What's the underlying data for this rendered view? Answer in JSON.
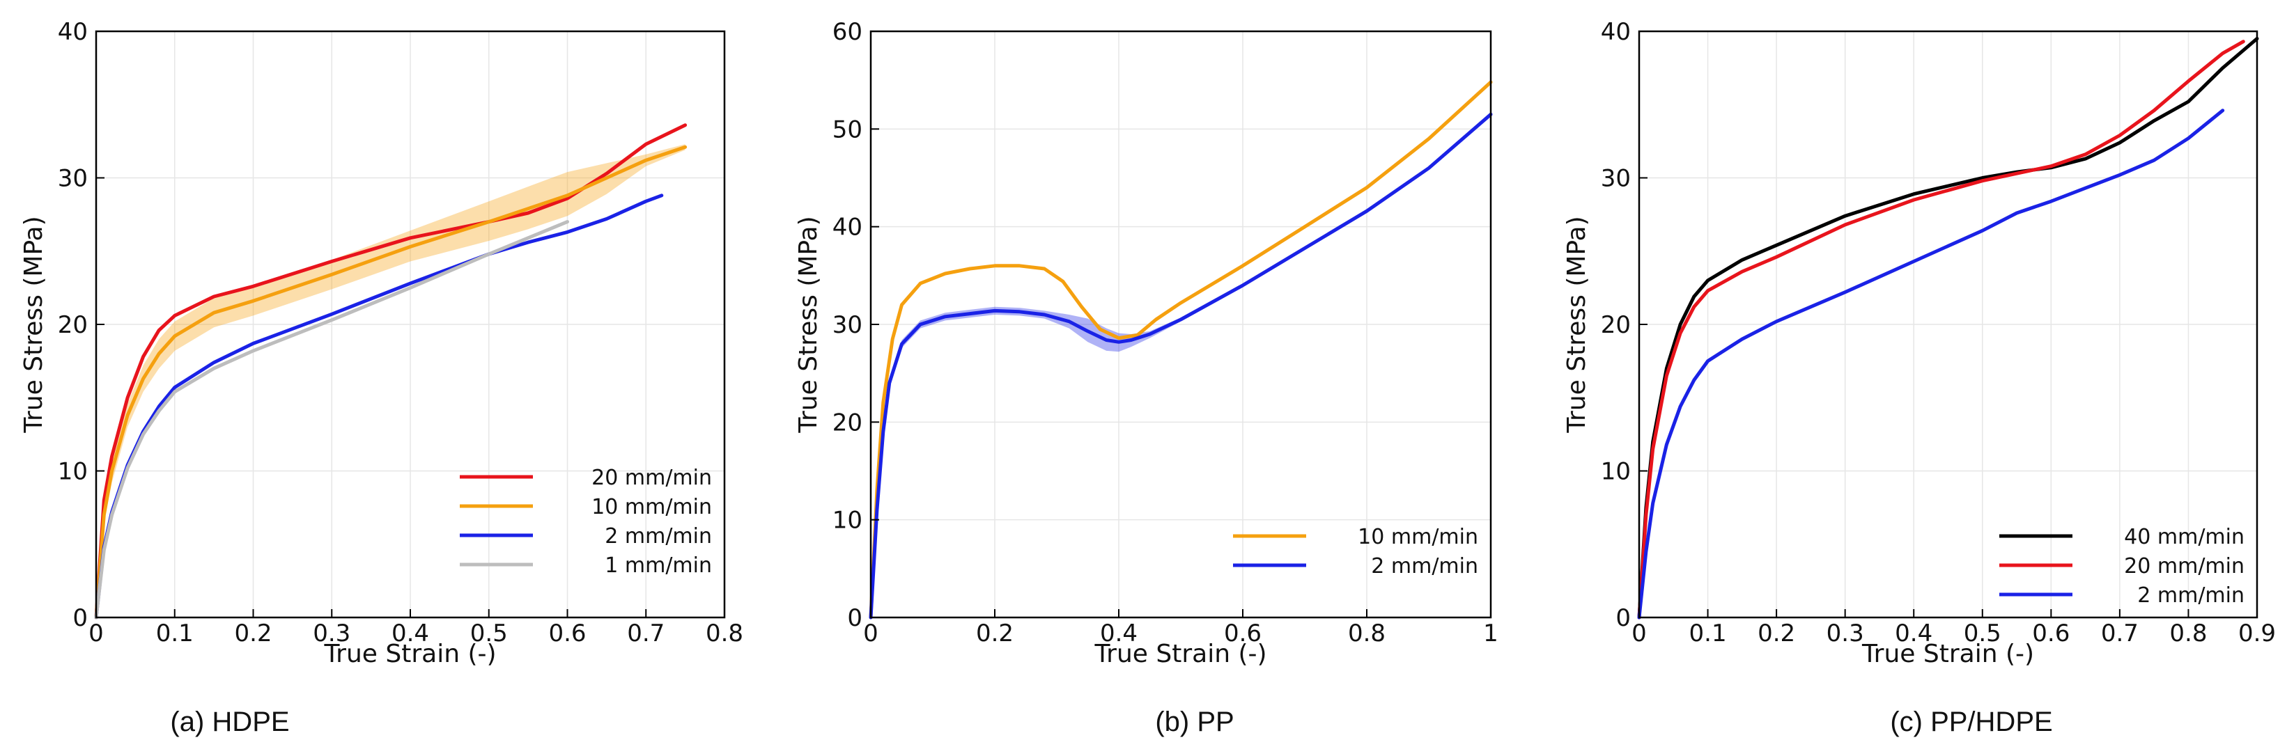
{
  "chart_data": [
    {
      "type": "line",
      "caption": "(a) HDPE",
      "xlabel": "True Strain (-)",
      "ylabel": "True Stress (MPa)",
      "xlim": [
        0,
        0.8
      ],
      "ylim": [
        0,
        40
      ],
      "xticks": [
        0,
        0.1,
        0.2,
        0.3,
        0.4,
        0.5,
        0.6,
        0.7,
        0.8
      ],
      "xtick_labels": [
        "0",
        "0.1",
        "0.2",
        "0.3",
        "0.4",
        "0.5",
        "0.6",
        "0.7",
        "0.8"
      ],
      "yticks": [
        0,
        10,
        20,
        30,
        40
      ],
      "ytick_labels": [
        "0",
        "10",
        "20",
        "30",
        "40"
      ],
      "grid": true,
      "legend_position": "bottom-right",
      "series": [
        {
          "name": "20 mm/min",
          "color": "#e8141c",
          "x": [
            0,
            0.01,
            0.02,
            0.04,
            0.06,
            0.08,
            0.1,
            0.15,
            0.2,
            0.3,
            0.4,
            0.5,
            0.55,
            0.6,
            0.65,
            0.7,
            0.75
          ],
          "y": [
            0,
            8,
            11,
            15,
            17.8,
            19.6,
            20.6,
            21.9,
            22.6,
            24.3,
            25.9,
            27.0,
            27.6,
            28.6,
            30.3,
            32.3,
            33.6
          ]
        },
        {
          "name": "10 mm/min",
          "color": "#f5a00f",
          "x": [
            0,
            0.01,
            0.02,
            0.04,
            0.06,
            0.08,
            0.1,
            0.15,
            0.2,
            0.3,
            0.4,
            0.5,
            0.55,
            0.6,
            0.65,
            0.7,
            0.75
          ],
          "y": [
            0,
            7,
            10,
            13.8,
            16.3,
            18.0,
            19.2,
            20.8,
            21.6,
            23.4,
            25.3,
            27.0,
            27.9,
            28.8,
            30.0,
            31.2,
            32.1
          ],
          "band_upper": [
            0,
            7.6,
            10.8,
            14.6,
            17.2,
            19.0,
            20.2,
            21.8,
            22.6,
            24.4,
            26.4,
            28.4,
            29.4,
            30.4,
            31.0,
            31.6,
            32.3
          ],
          "band_lower": [
            0,
            6.4,
            9.2,
            13.0,
            15.4,
            17.0,
            18.2,
            19.8,
            20.6,
            22.4,
            24.3,
            25.7,
            26.5,
            27.4,
            28.9,
            30.8,
            31.9
          ]
        },
        {
          "name": "2 mm/min",
          "color": "#1a22e6",
          "x": [
            0,
            0.01,
            0.02,
            0.04,
            0.06,
            0.08,
            0.1,
            0.15,
            0.2,
            0.3,
            0.4,
            0.5,
            0.55,
            0.6,
            0.65,
            0.7,
            0.72
          ],
          "y": [
            0,
            4.8,
            7.2,
            10.4,
            12.7,
            14.4,
            15.7,
            17.4,
            18.7,
            20.7,
            22.8,
            24.8,
            25.6,
            26.3,
            27.2,
            28.4,
            28.8
          ]
        },
        {
          "name": "1 mm/min",
          "color": "#bdbdbd",
          "x": [
            0,
            0.01,
            0.02,
            0.04,
            0.06,
            0.08,
            0.1,
            0.15,
            0.2,
            0.3,
            0.4,
            0.5,
            0.55,
            0.6
          ],
          "y": [
            0,
            4.6,
            7.0,
            10.2,
            12.5,
            14.1,
            15.4,
            17.0,
            18.2,
            20.3,
            22.5,
            24.8,
            25.9,
            27.0
          ]
        }
      ]
    },
    {
      "type": "line",
      "caption": "(b) PP",
      "xlabel": "True Strain (-)",
      "ylabel": "True Stress (MPa)",
      "xlim": [
        0,
        1
      ],
      "ylim": [
        0,
        60
      ],
      "xticks": [
        0,
        0.2,
        0.4,
        0.6,
        0.8,
        1
      ],
      "xtick_labels": [
        "0",
        "0.2",
        "0.4",
        "0.6",
        "0.8",
        "1"
      ],
      "yticks": [
        0,
        10,
        20,
        30,
        40,
        50,
        60
      ],
      "ytick_labels": [
        "0",
        "10",
        "20",
        "30",
        "40",
        "50",
        "60"
      ],
      "grid": true,
      "legend_position": "bottom-right",
      "series": [
        {
          "name": "10 mm/min",
          "color": "#f5a00f",
          "x": [
            0,
            0.01,
            0.02,
            0.035,
            0.05,
            0.08,
            0.12,
            0.16,
            0.2,
            0.24,
            0.28,
            0.31,
            0.34,
            0.37,
            0.4,
            0.43,
            0.46,
            0.5,
            0.6,
            0.7,
            0.8,
            0.9,
            1.0
          ],
          "y": [
            0,
            13,
            22,
            28.5,
            32,
            34.2,
            35.2,
            35.7,
            36.0,
            36.0,
            35.7,
            34.4,
            31.8,
            29.5,
            28.6,
            28.9,
            30.5,
            32.2,
            36.0,
            40.0,
            44.0,
            49.0,
            54.8
          ]
        },
        {
          "name": "2 mm/min",
          "color": "#1a22e6",
          "x": [
            0,
            0.01,
            0.02,
            0.03,
            0.05,
            0.08,
            0.12,
            0.16,
            0.2,
            0.24,
            0.28,
            0.32,
            0.35,
            0.38,
            0.4,
            0.42,
            0.45,
            0.5,
            0.6,
            0.7,
            0.8,
            0.9,
            1.0
          ],
          "y": [
            0,
            11,
            19,
            24,
            28,
            30.0,
            30.8,
            31.1,
            31.4,
            31.3,
            31.0,
            30.3,
            29.3,
            28.4,
            28.2,
            28.4,
            29.0,
            30.5,
            34.0,
            37.8,
            41.6,
            46.0,
            51.5
          ],
          "band_upper": [
            0,
            11.3,
            19.3,
            24.4,
            28.4,
            30.4,
            31.2,
            31.5,
            31.8,
            31.7,
            31.4,
            31.0,
            30.6,
            29.6,
            29.1,
            29.0,
            29.3,
            30.7,
            34.2,
            38.0,
            41.8,
            46.2,
            51.7
          ],
          "band_lower": [
            0,
            10.7,
            18.7,
            23.6,
            27.6,
            29.6,
            30.4,
            30.7,
            31.0,
            30.9,
            30.6,
            29.6,
            28.2,
            27.3,
            27.2,
            27.7,
            28.6,
            30.3,
            33.8,
            37.6,
            41.4,
            45.8,
            51.3
          ]
        }
      ]
    },
    {
      "type": "line",
      "caption": "(c) PP/HDPE",
      "xlabel": "True Strain (-)",
      "ylabel": "True Stress (MPa)",
      "xlim": [
        0,
        0.9
      ],
      "ylim": [
        0,
        40
      ],
      "xticks": [
        0,
        0.1,
        0.2,
        0.3,
        0.4,
        0.5,
        0.6,
        0.7,
        0.8,
        0.9
      ],
      "xtick_labels": [
        "0",
        "0.1",
        "0.2",
        "0.3",
        "0.4",
        "0.5",
        "0.6",
        "0.7",
        "0.8",
        "0.9"
      ],
      "yticks": [
        0,
        10,
        20,
        30,
        40
      ],
      "ytick_labels": [
        "0",
        "10",
        "20",
        "30",
        "40"
      ],
      "grid": true,
      "legend_position": "bottom-right",
      "series": [
        {
          "name": "40 mm/min",
          "color": "#000000",
          "x": [
            0,
            0.01,
            0.02,
            0.04,
            0.06,
            0.08,
            0.1,
            0.15,
            0.2,
            0.3,
            0.4,
            0.5,
            0.55,
            0.6,
            0.65,
            0.7,
            0.75,
            0.8,
            0.85,
            0.9
          ],
          "y": [
            0,
            7.5,
            12,
            17,
            20,
            21.9,
            23.0,
            24.4,
            25.4,
            27.4,
            28.9,
            30.0,
            30.4,
            30.7,
            31.3,
            32.4,
            33.9,
            35.2,
            37.5,
            39.5
          ]
        },
        {
          "name": "20 mm/min",
          "color": "#e8141c",
          "x": [
            0,
            0.01,
            0.02,
            0.04,
            0.06,
            0.08,
            0.1,
            0.15,
            0.2,
            0.3,
            0.4,
            0.5,
            0.55,
            0.6,
            0.65,
            0.7,
            0.75,
            0.8,
            0.85,
            0.88
          ],
          "y": [
            0,
            7,
            11.5,
            16.5,
            19.4,
            21.2,
            22.3,
            23.6,
            24.6,
            26.8,
            28.5,
            29.8,
            30.3,
            30.8,
            31.6,
            32.9,
            34.6,
            36.6,
            38.5,
            39.3
          ]
        },
        {
          "name": "2 mm/min",
          "color": "#1a22e6",
          "x": [
            0,
            0.01,
            0.02,
            0.04,
            0.06,
            0.08,
            0.1,
            0.15,
            0.2,
            0.3,
            0.4,
            0.5,
            0.55,
            0.6,
            0.65,
            0.7,
            0.75,
            0.8,
            0.85
          ],
          "y": [
            0,
            4.5,
            7.8,
            11.8,
            14.4,
            16.2,
            17.5,
            19.0,
            20.2,
            22.2,
            24.3,
            26.4,
            27.6,
            28.4,
            29.3,
            30.2,
            31.2,
            32.7,
            34.6
          ]
        }
      ]
    }
  ]
}
